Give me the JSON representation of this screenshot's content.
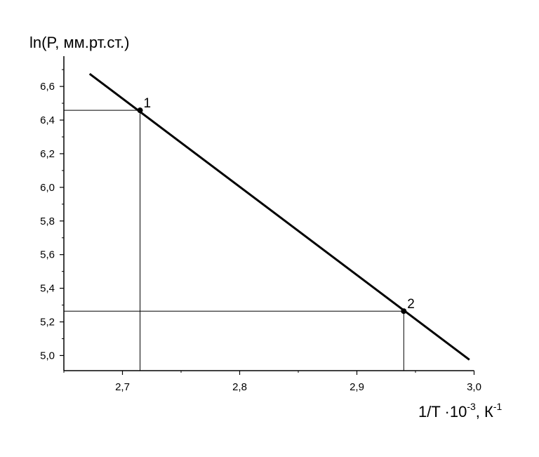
{
  "chart_data": {
    "type": "line",
    "y_label": "ln(P, мм.рт.ст.)",
    "x_label": {
      "base": "1/T ·10",
      "exp1": "-3",
      "mid": ", К",
      "exp2": "-1"
    },
    "series": [
      {
        "x": [
          2.672,
          2.996
        ],
        "values": [
          6.675,
          4.975
        ],
        "color": "#000000"
      }
    ],
    "points": {
      "x": [
        2.715,
        2.94
      ],
      "values": [
        6.458,
        5.264
      ],
      "labels": [
        "1",
        "2"
      ],
      "color": "#000000"
    },
    "xlim": [
      2.65,
      3.0
    ],
    "ylim": [
      4.91,
      6.78
    ],
    "xticks": [
      {
        "value": 2.7,
        "label": "2,7"
      },
      {
        "value": 2.8,
        "label": "2,8"
      },
      {
        "value": 2.9,
        "label": "2,9"
      },
      {
        "value": 3.0,
        "label": "3,0"
      }
    ],
    "yticks": [
      {
        "value": 5.0,
        "label": "5,0"
      },
      {
        "value": 5.2,
        "label": "5,2"
      },
      {
        "value": 5.4,
        "label": "5,4"
      },
      {
        "value": 5.6,
        "label": "5,6"
      },
      {
        "value": 5.8,
        "label": "5,8"
      },
      {
        "value": 6.0,
        "label": "6,0"
      },
      {
        "value": 6.2,
        "label": "6,2"
      },
      {
        "value": 6.4,
        "label": "6,4"
      },
      {
        "value": 6.6,
        "label": "6,6"
      }
    ],
    "xminorticks": [
      2.65,
      2.75,
      2.85,
      2.95
    ],
    "yminorticks": [
      5.1,
      5.3,
      5.5,
      5.7,
      5.9,
      6.1,
      6.3,
      6.5,
      6.7
    ],
    "grid": false
  }
}
